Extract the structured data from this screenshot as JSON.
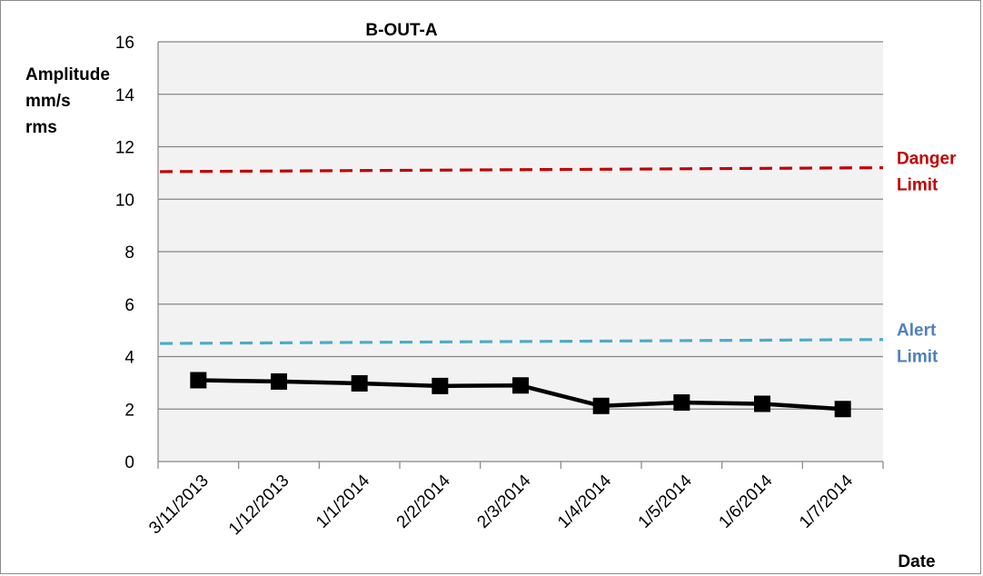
{
  "chart_data": {
    "type": "line",
    "title": "B-OUT-A",
    "ylabel_lines": [
      "Amplitude",
      "mm/s",
      "rms"
    ],
    "xlabel": "Date",
    "ylim": [
      0,
      16
    ],
    "yticks": [
      0,
      2,
      4,
      6,
      8,
      10,
      12,
      14,
      16
    ],
    "grid": true,
    "categories": [
      "3/11/2013",
      "1/12/2013",
      "1/1/2014",
      "2/2/2014",
      "2/3/2014",
      "1/4/2014",
      "1/5/2014",
      "1/6/2014",
      "1/7/2014"
    ],
    "series": [
      {
        "values": [
          3.1,
          3.05,
          2.98,
          2.88,
          2.9,
          2.12,
          2.25,
          2.2,
          2.0
        ],
        "color": "#000000"
      }
    ],
    "limits": [
      {
        "label_lines": [
          "Danger",
          "Limit"
        ],
        "start": 11.05,
        "end": 11.2,
        "color": "#c00000"
      },
      {
        "label_lines": [
          "Alert",
          "Limit"
        ],
        "start": 4.5,
        "end": 4.65,
        "color": "#4bacc6",
        "label_color": "#4f81bd"
      }
    ],
    "plot_background": "#f2f2f2",
    "grid_color": "#868686"
  }
}
